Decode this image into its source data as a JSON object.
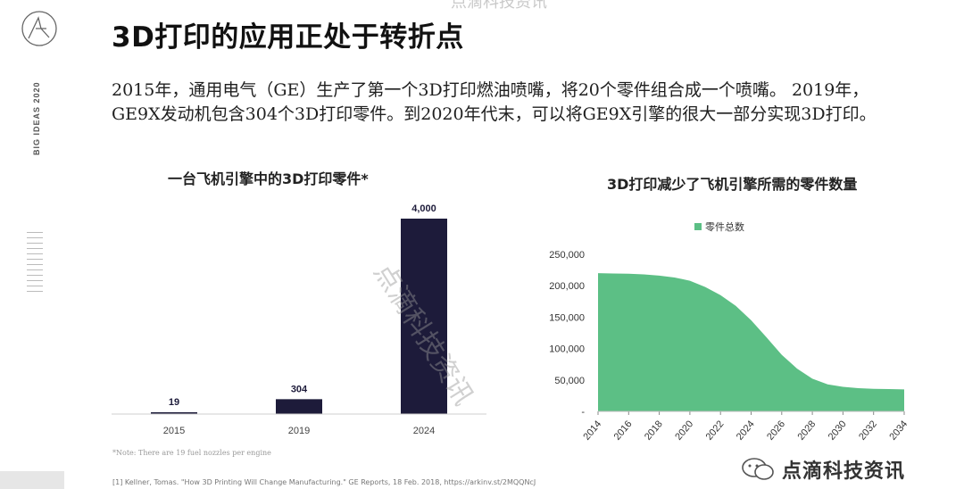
{
  "watermark_top": "点滴科技资讯",
  "watermark_diagonal": "点滴科技资讯",
  "watermark_brand": "点滴科技资讯",
  "sidebar": {
    "label": "BIG IDEAS 2020"
  },
  "title": "3D打印的应用正处于转折点",
  "intro_text": "2015年，通用电气（GE）生产了第一个3D打印燃油喷嘴，将20个零件组合成一个喷嘴。 2019年，GE9X发动机包含304个3D打印零件。到2020年代末，可以将GE9X引擎的很大一部分实现3D打印。",
  "note": "*Note: There are 19 fuel nozzles per engine",
  "footnote": "[1] Kellner, Tomas. \"How 3D Printing Will Change Manufacturing.\" GE Reports, 18 Feb. 2018, https://arkinv.st/2MQQNcJ",
  "colors": {
    "bar": "#1d1b3a",
    "area": "#5cbf85",
    "axis": "#777777"
  },
  "chart_data": [
    {
      "type": "bar",
      "title": "一台飞机引擎中的3D打印零件*",
      "categories": [
        "2015",
        "2019",
        "2024"
      ],
      "values": [
        19,
        304,
        4000
      ],
      "value_labels": [
        "19",
        "304",
        "4,000"
      ],
      "ylim": [
        0,
        4000
      ],
      "grid": false
    },
    {
      "type": "area",
      "title": "3D打印减少了飞机引擎所需的零件数量",
      "legend": "零件总数",
      "legend_position": "top-center",
      "x": [
        2014,
        2015,
        2016,
        2017,
        2018,
        2019,
        2020,
        2021,
        2022,
        2023,
        2024,
        2025,
        2026,
        2027,
        2028,
        2029,
        2030,
        2031,
        2032,
        2033,
        2034
      ],
      "y": [
        220000,
        219500,
        219000,
        218000,
        216000,
        213000,
        208000,
        198000,
        185000,
        168000,
        145000,
        118000,
        90000,
        68000,
        52000,
        43000,
        39000,
        37000,
        36000,
        35500,
        35000
      ],
      "xticks": [
        "2014",
        "2016",
        "2018",
        "2020",
        "2022",
        "2024",
        "2026",
        "2028",
        "2030",
        "2032",
        "2034"
      ],
      "yticks": [
        "250,000",
        "200,000",
        "150,000",
        "100,000",
        "50,000",
        "-"
      ],
      "ylim": [
        0,
        250000
      ],
      "grid": false
    }
  ]
}
